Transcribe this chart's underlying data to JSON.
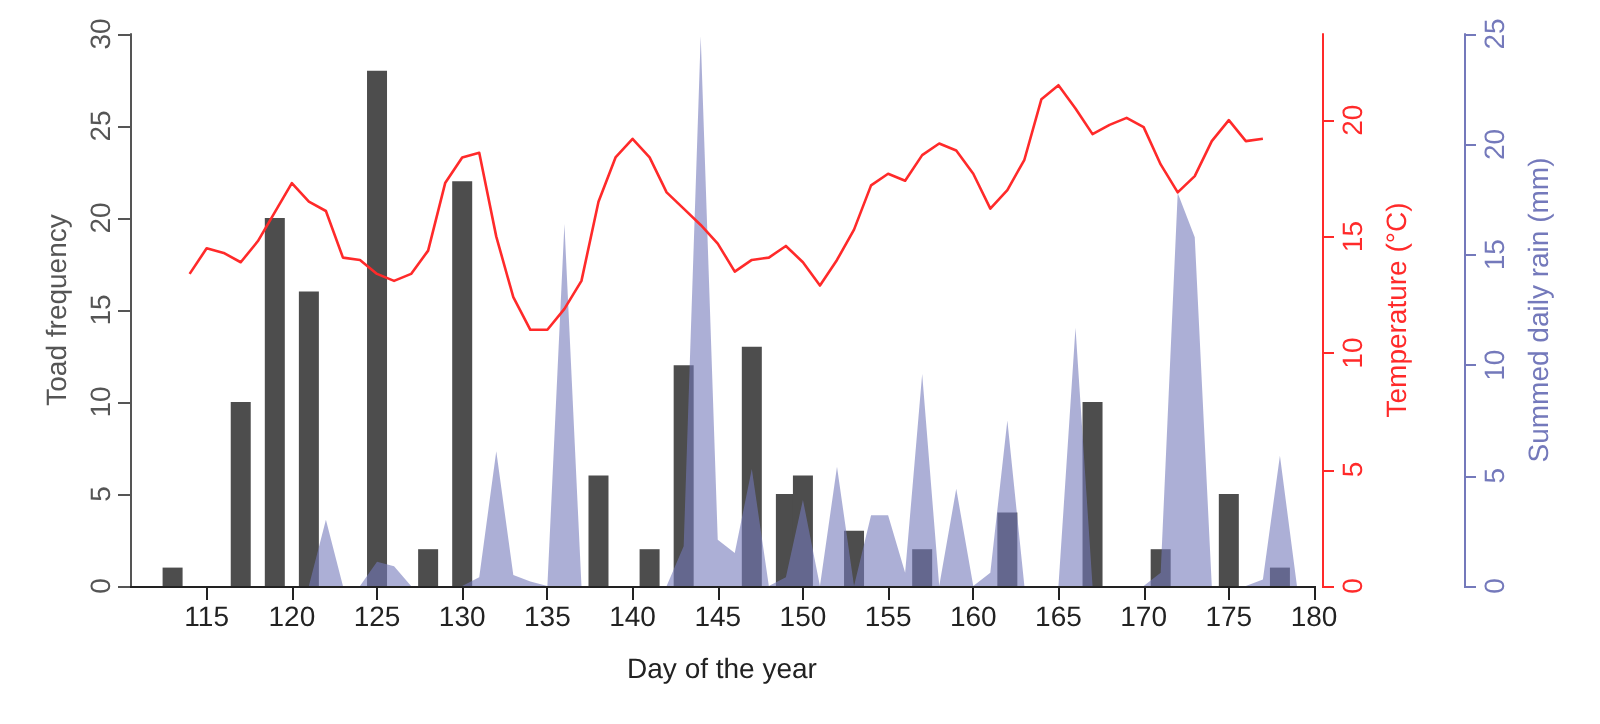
{
  "chart_data": {
    "type": "bar",
    "xlabel": "Day of the year",
    "ylabel": "Toad frequency",
    "y2label": "Temperature (°C)",
    "y3label": "Summed daily rain (mm)",
    "xlim": [
      110.5,
      180
    ],
    "xticks": [
      115,
      120,
      125,
      130,
      135,
      140,
      145,
      150,
      155,
      160,
      165,
      170,
      175,
      180
    ],
    "ylim": [
      0,
      30
    ],
    "yticks": [
      0,
      5,
      10,
      15,
      20,
      25,
      30
    ],
    "y2lim": [
      0,
      23.7
    ],
    "y2ticks": [
      0,
      5,
      10,
      15,
      20
    ],
    "y3lim": [
      0,
      25
    ],
    "y3ticks": [
      0,
      5,
      10,
      15,
      20,
      25
    ],
    "grid": false,
    "series": [
      {
        "color": "#4d4d4d",
        "x": [
          113,
          117,
          119,
          121,
          125,
          128,
          130,
          138,
          141,
          143,
          147,
          149,
          150,
          153,
          157,
          162,
          167,
          171,
          175,
          178
        ],
        "values": [
          1,
          10,
          20,
          16,
          28,
          2,
          22,
          6,
          2,
          12,
          13,
          5,
          6,
          3,
          2,
          4,
          10,
          2,
          5,
          1
        ]
      },
      {
        "type": "line",
        "axis": "y2",
        "color": "#ff2a2a",
        "x": [
          114,
          115,
          116,
          117,
          118,
          120,
          121,
          122,
          123,
          124,
          125,
          126,
          127,
          128,
          129,
          130,
          131,
          132,
          133,
          134,
          135,
          136,
          137,
          138,
          139,
          140,
          141,
          142,
          143,
          144,
          145,
          146,
          147,
          148,
          149,
          150,
          151,
          152,
          153,
          154,
          155,
          156,
          157,
          158,
          159,
          160,
          161,
          162,
          163,
          164,
          165,
          166,
          167,
          168,
          169,
          170,
          171,
          172,
          173,
          174,
          175,
          176,
          177
        ],
        "values": [
          13.4,
          14.5,
          14.3,
          13.9,
          14.8,
          17.3,
          16.5,
          16.1,
          14.1,
          14.0,
          13.4,
          13.1,
          13.4,
          14.4,
          17.3,
          18.4,
          18.6,
          15.0,
          12.4,
          11.0,
          11.0,
          11.9,
          13.1,
          16.5,
          18.4,
          19.2,
          18.4,
          16.9,
          16.2,
          15.5,
          14.7,
          13.5,
          14.0,
          14.1,
          14.6,
          13.9,
          12.9,
          14.0,
          15.3,
          17.2,
          17.7,
          17.4,
          18.5,
          19.0,
          18.7,
          17.7,
          16.2,
          17.0,
          18.3,
          20.9,
          21.5,
          20.5,
          19.4,
          19.8,
          20.1,
          19.7,
          18.1,
          16.9,
          17.6,
          19.1,
          20.0,
          19.1,
          19.2
        ]
      },
      {
        "type": "area",
        "axis": "y3",
        "color": "#7479bb",
        "x": [
          121,
          122,
          123,
          124,
          125,
          126,
          127,
          128,
          129,
          130,
          131,
          132,
          133,
          134,
          135,
          136,
          137,
          138,
          139,
          140,
          141,
          142,
          143,
          144,
          145,
          146,
          147,
          148,
          149,
          150,
          151,
          152,
          153,
          154,
          155,
          156,
          157,
          158,
          159,
          160,
          161,
          162,
          163,
          164,
          165,
          166,
          167,
          168,
          169,
          170,
          171,
          172,
          173,
          174,
          175,
          176,
          177,
          178,
          179
        ],
        "values": [
          0,
          3.0,
          0,
          0,
          1.1,
          0.9,
          0,
          0,
          0,
          0,
          0.4,
          6.1,
          0.5,
          0.2,
          0,
          16.4,
          0,
          0,
          0,
          0,
          0,
          0,
          1.8,
          24.9,
          2.1,
          1.5,
          5.3,
          0,
          0.4,
          3.9,
          0,
          5.4,
          0,
          3.2,
          3.2,
          0.6,
          9.6,
          0,
          4.4,
          0,
          0.6,
          7.5,
          0,
          0,
          0,
          11.7,
          0,
          0,
          0,
          0,
          0.6,
          17.8,
          15.8,
          0,
          0,
          0,
          0.3,
          5.9,
          0
        ]
      }
    ]
  }
}
